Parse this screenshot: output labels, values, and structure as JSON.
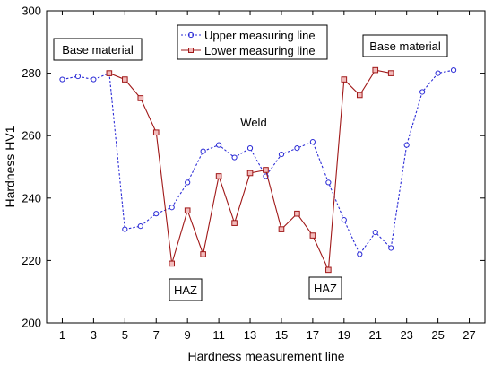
{
  "chart_data": {
    "type": "line",
    "xlabel": "Hardness measurement line",
    "ylabel": "Hardness HV1",
    "xlim": [
      0,
      28
    ],
    "ylim": [
      200,
      300
    ],
    "xticks": [
      1,
      3,
      5,
      7,
      9,
      11,
      13,
      15,
      17,
      19,
      21,
      23,
      25,
      27
    ],
    "yticks": [
      200,
      220,
      240,
      260,
      280,
      300
    ],
    "grid": false,
    "legend_position": "top-center",
    "series": [
      {
        "name": "Upper measuring line",
        "color": "#2b2bd6",
        "line_style": "dashed",
        "marker": "circle",
        "x": [
          1,
          2,
          3,
          4,
          5,
          6,
          7,
          8,
          9,
          10,
          11,
          12,
          13,
          14,
          15,
          16,
          17,
          18,
          19,
          20,
          21,
          22,
          23,
          24,
          25,
          26
        ],
        "values": [
          278,
          279,
          278,
          280,
          230,
          231,
          235,
          237,
          245,
          255,
          257,
          253,
          256,
          247,
          254,
          256,
          258,
          245,
          233,
          222,
          229,
          224,
          257,
          274,
          280,
          281
        ]
      },
      {
        "name": "Lower measuring line",
        "color": "#a01818",
        "line_style": "solid",
        "marker": "square",
        "x": [
          4,
          5,
          6,
          7,
          8,
          9,
          10,
          11,
          12,
          13,
          14,
          15,
          16,
          17,
          18,
          19,
          20,
          21,
          22
        ],
        "values": [
          280,
          278,
          272,
          261,
          219,
          236,
          222,
          247,
          232,
          248,
          249,
          230,
          235,
          228,
          217,
          278,
          273,
          281,
          280
        ]
      }
    ],
    "annotations": [
      {
        "text": "Base material",
        "boxed": true
      },
      {
        "text": "Base material",
        "boxed": true
      },
      {
        "text": "Weld",
        "boxed": false
      },
      {
        "text": "HAZ",
        "boxed": true
      },
      {
        "text": "HAZ",
        "boxed": true
      }
    ]
  }
}
